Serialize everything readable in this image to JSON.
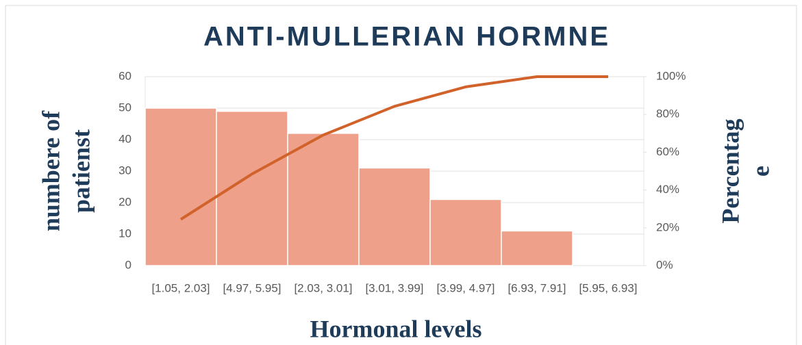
{
  "chart_data": {
    "type": "pareto",
    "title": "ANTI-MULLERIAN HORMNE",
    "x_label": "Hormonal levels",
    "y_label": [
      "numbere of",
      "patienst"
    ],
    "y2_label": [
      "Percentag",
      "e"
    ],
    "categories": [
      "[1.05, 2.03]",
      "[4.97, 5.95]",
      "[2.03, 3.01]",
      "[3.01, 3.99]",
      "[3.99, 4.97]",
      "[6.93, 7.91]",
      "[5.95, 6.93]"
    ],
    "series": [
      {
        "type": "bar",
        "color": "#eea08a",
        "values": [
          50,
          49,
          42,
          31,
          21,
          11,
          0
        ]
      },
      {
        "type": "line",
        "axis": "y2",
        "color": "#d0622a",
        "values": [
          24.5,
          48.5,
          69.1,
          84.3,
          94.6,
          100,
          100
        ]
      }
    ],
    "ylim": [
      0,
      60
    ],
    "yticks": [
      0,
      10,
      20,
      30,
      40,
      50,
      60
    ],
    "y2lim": [
      0,
      100
    ],
    "y2ticks": [
      {
        "value": 0,
        "label": "0%"
      },
      {
        "value": 20,
        "label": "20%"
      },
      {
        "value": 40,
        "label": "40%"
      },
      {
        "value": 60,
        "label": "60%"
      },
      {
        "value": 80,
        "label": "80%"
      },
      {
        "value": 100,
        "label": "100%"
      }
    ],
    "grid": true
  }
}
